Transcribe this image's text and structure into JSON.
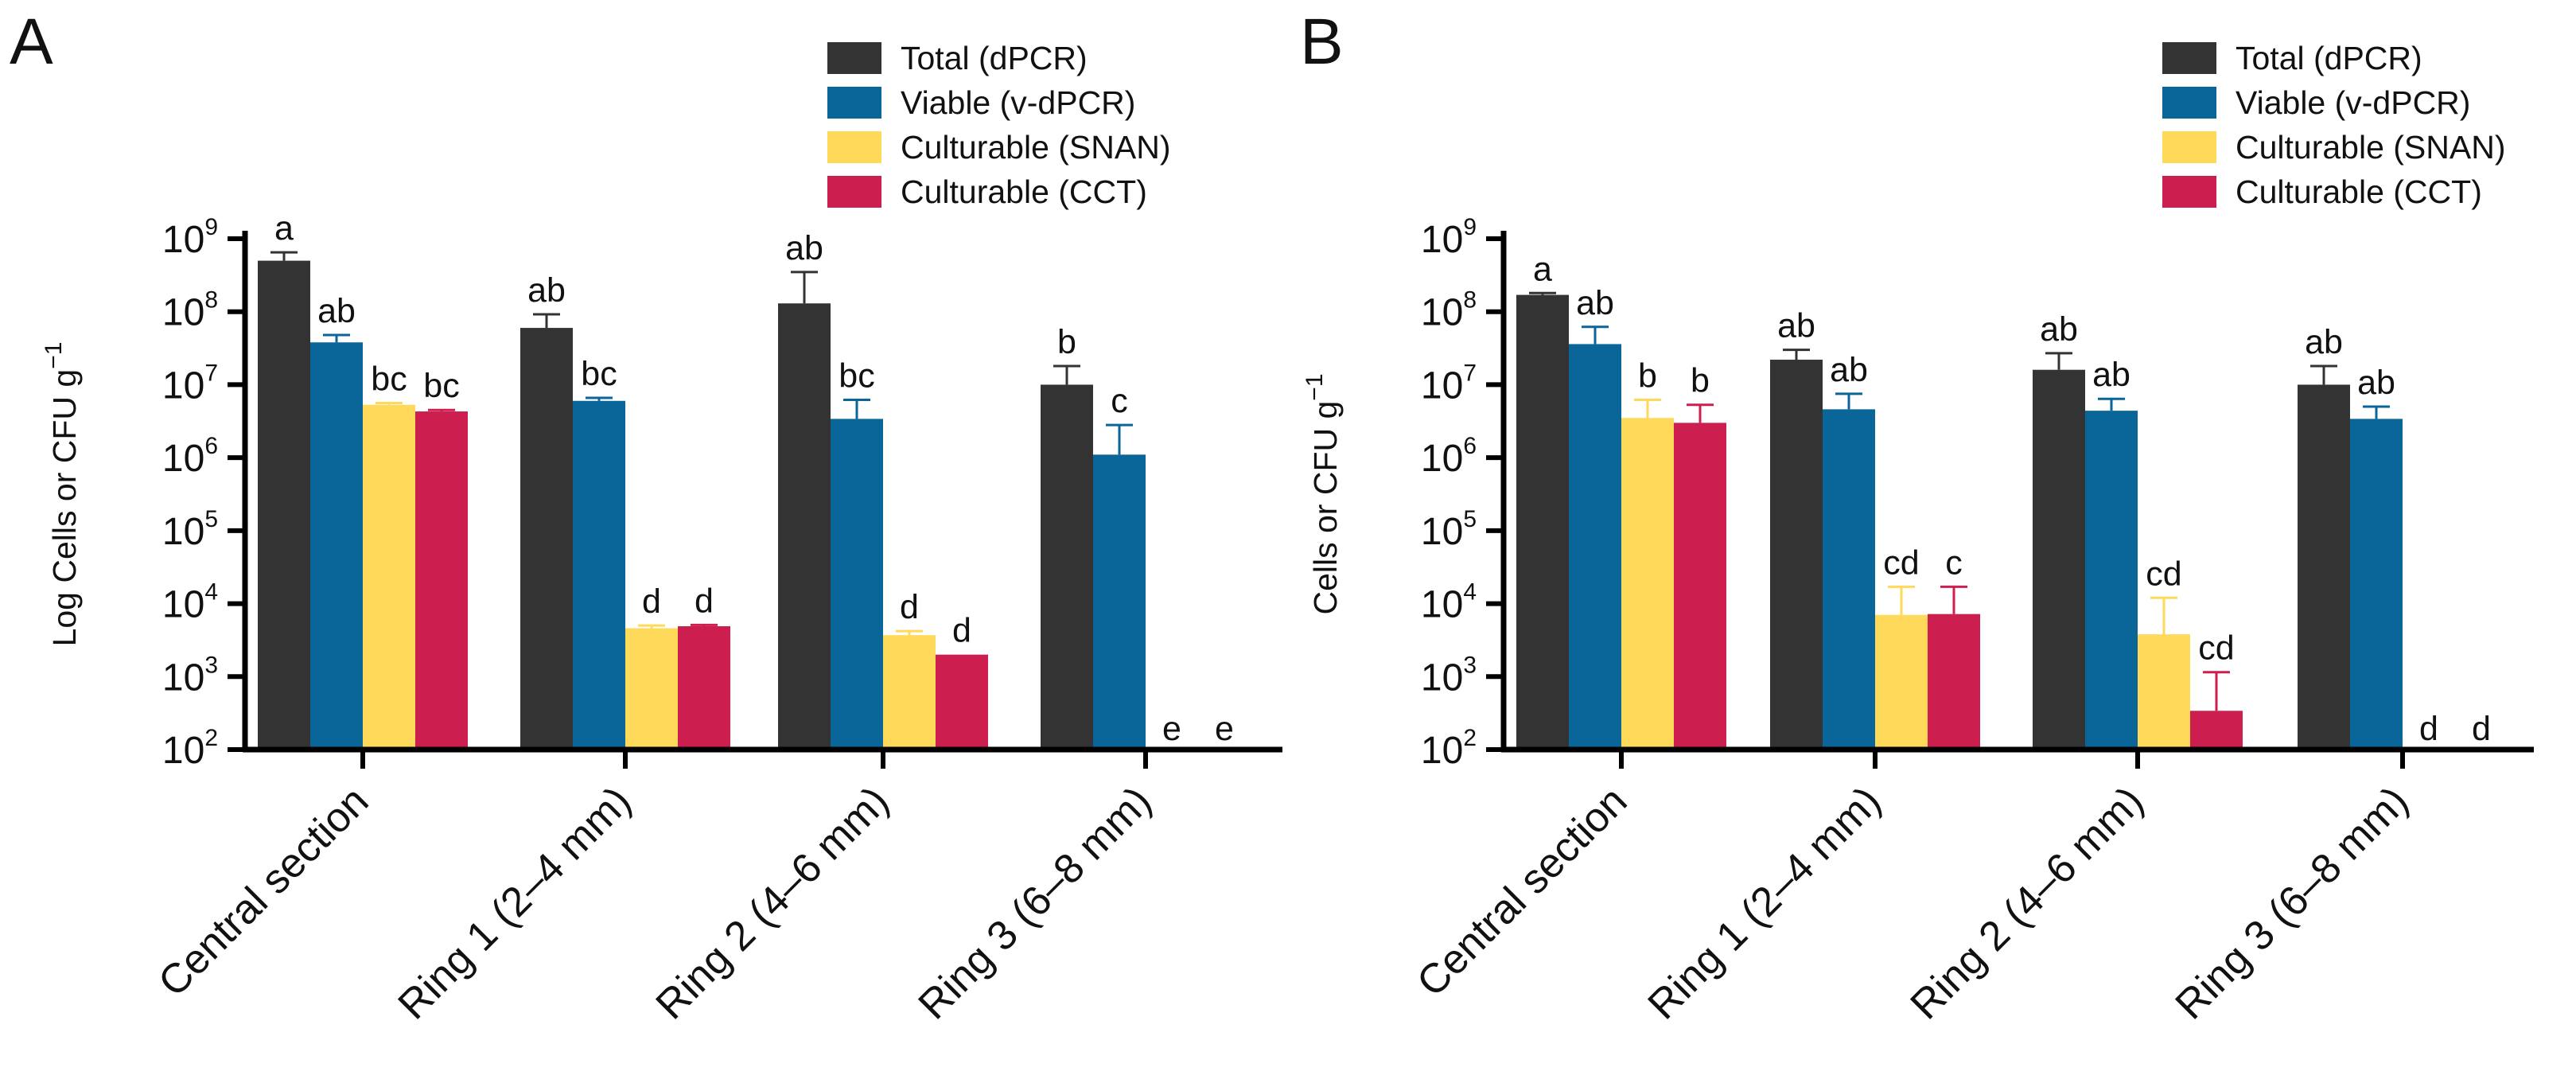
{
  "chart_data": [
    {
      "panel": "A",
      "type": "bar",
      "yscale": "log",
      "ylim": [
        100,
        1000000000
      ],
      "ylabel": "Log Cells or CFU g",
      "ylabel_sup": "−1",
      "yticks": [
        {
          "base": "10",
          "exp": "2",
          "value": 100
        },
        {
          "base": "10",
          "exp": "3",
          "value": 1000
        },
        {
          "base": "10",
          "exp": "4",
          "value": 10000
        },
        {
          "base": "10",
          "exp": "5",
          "value": 100000
        },
        {
          "base": "10",
          "exp": "6",
          "value": 1000000
        },
        {
          "base": "10",
          "exp": "7",
          "value": 10000000
        },
        {
          "base": "10",
          "exp": "8",
          "value": 100000000
        },
        {
          "base": "10",
          "exp": "9",
          "value": 1000000000
        }
      ],
      "categories": [
        "Central section",
        "Ring 1 (2–4 mm)",
        "Ring 2 (4–6 mm)",
        "Ring 3 (6–8 mm)"
      ],
      "legend_position": "top-right",
      "series": [
        {
          "name": "Total (dPCR)",
          "color": "#333333",
          "values": [
            500000000,
            60000000,
            130000000,
            10000000
          ],
          "errors": [
            650000000,
            92000000,
            350000000,
            18000000
          ],
          "labels": [
            "a",
            "ab",
            "ab",
            "b"
          ]
        },
        {
          "name": "Viable (v-dPCR)",
          "color": "#0a6599",
          "values": [
            38000000,
            6000000,
            3400000,
            1100000
          ],
          "errors": [
            48000000,
            6600000,
            6200000,
            2800000
          ],
          "labels": [
            "ab",
            "bc",
            "bc",
            "c"
          ]
        },
        {
          "name": "Culturable (SNAN)",
          "color": "#ffd95a",
          "values": [
            5300000,
            4600,
            3700,
            null
          ],
          "errors": [
            5600000,
            5000,
            4200,
            null
          ],
          "labels": [
            "bc",
            "d",
            "d",
            "e"
          ]
        },
        {
          "name": "Culturable (CCT)",
          "color": "#cc1f4f",
          "values": [
            4300000,
            4900,
            2000,
            null
          ],
          "errors": [
            4500000,
            5100,
            null,
            null
          ],
          "labels": [
            "bc",
            "d",
            "d",
            "e"
          ]
        }
      ]
    },
    {
      "panel": "B",
      "type": "bar",
      "yscale": "log",
      "ylim": [
        100,
        1000000000
      ],
      "ylabel": "Cells or CFU g",
      "ylabel_sup": "−1",
      "yticks": [
        {
          "base": "10",
          "exp": "2",
          "value": 100
        },
        {
          "base": "10",
          "exp": "3",
          "value": 1000
        },
        {
          "base": "10",
          "exp": "4",
          "value": 10000
        },
        {
          "base": "10",
          "exp": "5",
          "value": 100000
        },
        {
          "base": "10",
          "exp": "6",
          "value": 1000000
        },
        {
          "base": "10",
          "exp": "7",
          "value": 10000000
        },
        {
          "base": "10",
          "exp": "8",
          "value": 100000000
        },
        {
          "base": "10",
          "exp": "9",
          "value": 1000000000
        }
      ],
      "categories": [
        "Central section",
        "Ring 1 (2–4 mm)",
        "Ring 2 (4–6 mm)",
        "Ring 3 (6–8 mm)"
      ],
      "legend_position": "top-right",
      "series": [
        {
          "name": "Total (dPCR)",
          "color": "#333333",
          "values": [
            170000000,
            22000000,
            16000000,
            10000000
          ],
          "errors": [
            180000000,
            30000000,
            27000000,
            18000000
          ],
          "labels": [
            "a",
            "ab",
            "ab",
            "ab"
          ]
        },
        {
          "name": "Viable (v-dPCR)",
          "color": "#0a6599",
          "values": [
            36000000,
            4600000,
            4400000,
            3400000
          ],
          "errors": [
            62000000,
            7500000,
            6400000,
            5000000
          ],
          "labels": [
            "ab",
            "ab",
            "ab",
            "ab"
          ]
        },
        {
          "name": "Culturable (SNAN)",
          "color": "#ffd95a",
          "values": [
            3500000,
            7000,
            3800,
            null
          ],
          "errors": [
            6200000,
            17000,
            12000,
            null
          ],
          "labels": [
            "b",
            "cd",
            "cd",
            "d"
          ]
        },
        {
          "name": "Culturable (CCT)",
          "color": "#cc1f4f",
          "values": [
            3000000,
            7200,
            340,
            null
          ],
          "errors": [
            5300000,
            17000,
            1150,
            null
          ],
          "labels": [
            "b",
            "c",
            "cd",
            "d"
          ]
        }
      ]
    }
  ]
}
